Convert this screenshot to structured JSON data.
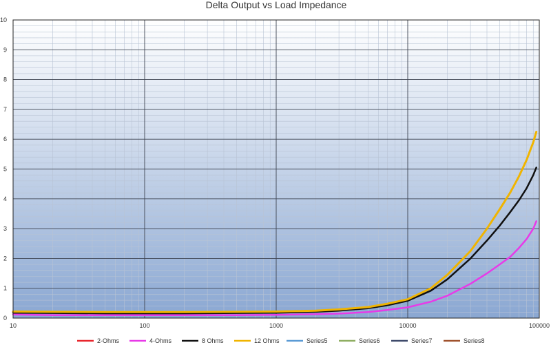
{
  "chart_data": {
    "type": "line",
    "title": "Delta Output vs Load Impedance",
    "xscale": "log",
    "xlim": [
      10,
      100000
    ],
    "ylim": [
      0,
      10
    ],
    "x_ticks": [
      "10",
      "100",
      "1000",
      "10000",
      "100000"
    ],
    "y_ticks": [
      "0",
      "1",
      "2",
      "3",
      "4",
      "5",
      "6",
      "7",
      "8",
      "9",
      "10"
    ],
    "grid": true,
    "legend_position": "bottom",
    "series": [
      {
        "name": "2-Ohms",
        "color": "#e8262d",
        "width": 1.5,
        "points": []
      },
      {
        "name": "4-Ohms",
        "color": "#e83ae8",
        "width": 2.5,
        "points": [
          [
            10,
            0.12
          ],
          [
            20,
            0.1
          ],
          [
            50,
            0.1
          ],
          [
            100,
            0.1
          ],
          [
            200,
            0.1
          ],
          [
            500,
            0.1
          ],
          [
            1000,
            0.11
          ],
          [
            2000,
            0.13
          ],
          [
            3000,
            0.15
          ],
          [
            5000,
            0.2
          ],
          [
            7000,
            0.27
          ],
          [
            10000,
            0.36
          ],
          [
            15000,
            0.55
          ],
          [
            20000,
            0.75
          ],
          [
            30000,
            1.15
          ],
          [
            40000,
            1.5
          ],
          [
            50000,
            1.8
          ],
          [
            60000,
            2.05
          ],
          [
            70000,
            2.35
          ],
          [
            80000,
            2.65
          ],
          [
            90000,
            3.0
          ],
          [
            95000,
            3.25
          ]
        ]
      },
      {
        "name": "8 Ohms",
        "color": "#111111",
        "width": 2.5,
        "points": [
          [
            10,
            0.18
          ],
          [
            20,
            0.17
          ],
          [
            50,
            0.16
          ],
          [
            100,
            0.16
          ],
          [
            200,
            0.16
          ],
          [
            500,
            0.17
          ],
          [
            1000,
            0.18
          ],
          [
            2000,
            0.21
          ],
          [
            3000,
            0.25
          ],
          [
            5000,
            0.33
          ],
          [
            7000,
            0.43
          ],
          [
            10000,
            0.58
          ],
          [
            15000,
            0.92
          ],
          [
            20000,
            1.3
          ],
          [
            30000,
            2.0
          ],
          [
            40000,
            2.6
          ],
          [
            50000,
            3.1
          ],
          [
            60000,
            3.55
          ],
          [
            70000,
            3.95
          ],
          [
            80000,
            4.35
          ],
          [
            90000,
            4.8
          ],
          [
            95000,
            5.05
          ]
        ]
      },
      {
        "name": "12 Ohms",
        "color": "#f0b400",
        "width": 3,
        "points": [
          [
            10,
            0.22
          ],
          [
            20,
            0.21
          ],
          [
            50,
            0.2
          ],
          [
            100,
            0.2
          ],
          [
            200,
            0.2
          ],
          [
            500,
            0.21
          ],
          [
            1000,
            0.22
          ],
          [
            2000,
            0.25
          ],
          [
            3000,
            0.29
          ],
          [
            5000,
            0.37
          ],
          [
            7000,
            0.48
          ],
          [
            10000,
            0.63
          ],
          [
            15000,
            1.0
          ],
          [
            20000,
            1.45
          ],
          [
            30000,
            2.25
          ],
          [
            40000,
            3.0
          ],
          [
            50000,
            3.65
          ],
          [
            60000,
            4.2
          ],
          [
            70000,
            4.75
          ],
          [
            80000,
            5.3
          ],
          [
            90000,
            5.9
          ],
          [
            95000,
            6.25
          ]
        ]
      },
      {
        "name": "Series5",
        "color": "#5b9bd5",
        "width": 1.5,
        "points": []
      },
      {
        "name": "Series6",
        "color": "#8fae62",
        "width": 1.5,
        "points": []
      },
      {
        "name": "Series7",
        "color": "#3f4a6b",
        "width": 1.5,
        "points": []
      },
      {
        "name": "Series8",
        "color": "#a0522d",
        "width": 1.5,
        "points": []
      }
    ]
  }
}
